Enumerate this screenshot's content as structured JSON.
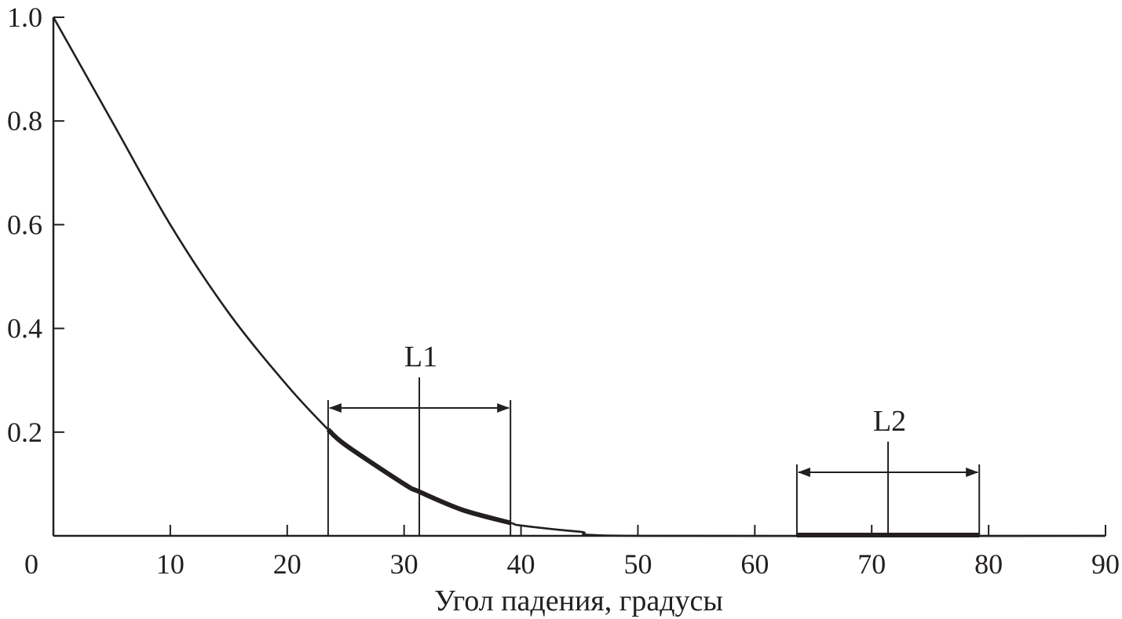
{
  "chart_data": {
    "type": "line",
    "title": "",
    "xlabel": "Угол падения, градусы",
    "ylabel": "",
    "xlim": [
      0,
      90
    ],
    "ylim": [
      0,
      1.0
    ],
    "x_ticks": [
      0,
      10,
      20,
      30,
      40,
      50,
      60,
      70,
      80,
      90
    ],
    "x_tick_labels": [
      "0",
      "10",
      "20",
      "30",
      "40",
      "50",
      "60",
      "70",
      "80",
      "90"
    ],
    "y_ticks": [
      0.2,
      0.4,
      0.6,
      0.8,
      1.0
    ],
    "y_tick_labels": [
      "0.2",
      "0.4",
      "0.6",
      "0.8",
      "1.0"
    ],
    "grid": false,
    "series": [
      {
        "x": [
          0,
          5,
          10,
          15,
          20,
          23.5,
          25,
          30,
          31.3,
          35,
          39.1,
          40,
          45,
          50,
          90
        ],
        "y": [
          1.0,
          0.8,
          0.6,
          0.43,
          0.29,
          0.205,
          0.175,
          0.1,
          0.085,
          0.05,
          0.025,
          0.02,
          0.008,
          0.0,
          0.0
        ]
      }
    ],
    "annotations": [
      {
        "label": "L1",
        "x_start": 23.5,
        "x_end": 39.1,
        "x_center": 31.3,
        "emphasis": "curve"
      },
      {
        "label": "L2",
        "x_start": 63.6,
        "x_end": 79.2,
        "x_center": 71.4,
        "emphasis": "axis"
      }
    ],
    "colors": {
      "ink": "#231f20",
      "background": "#ffffff"
    }
  }
}
